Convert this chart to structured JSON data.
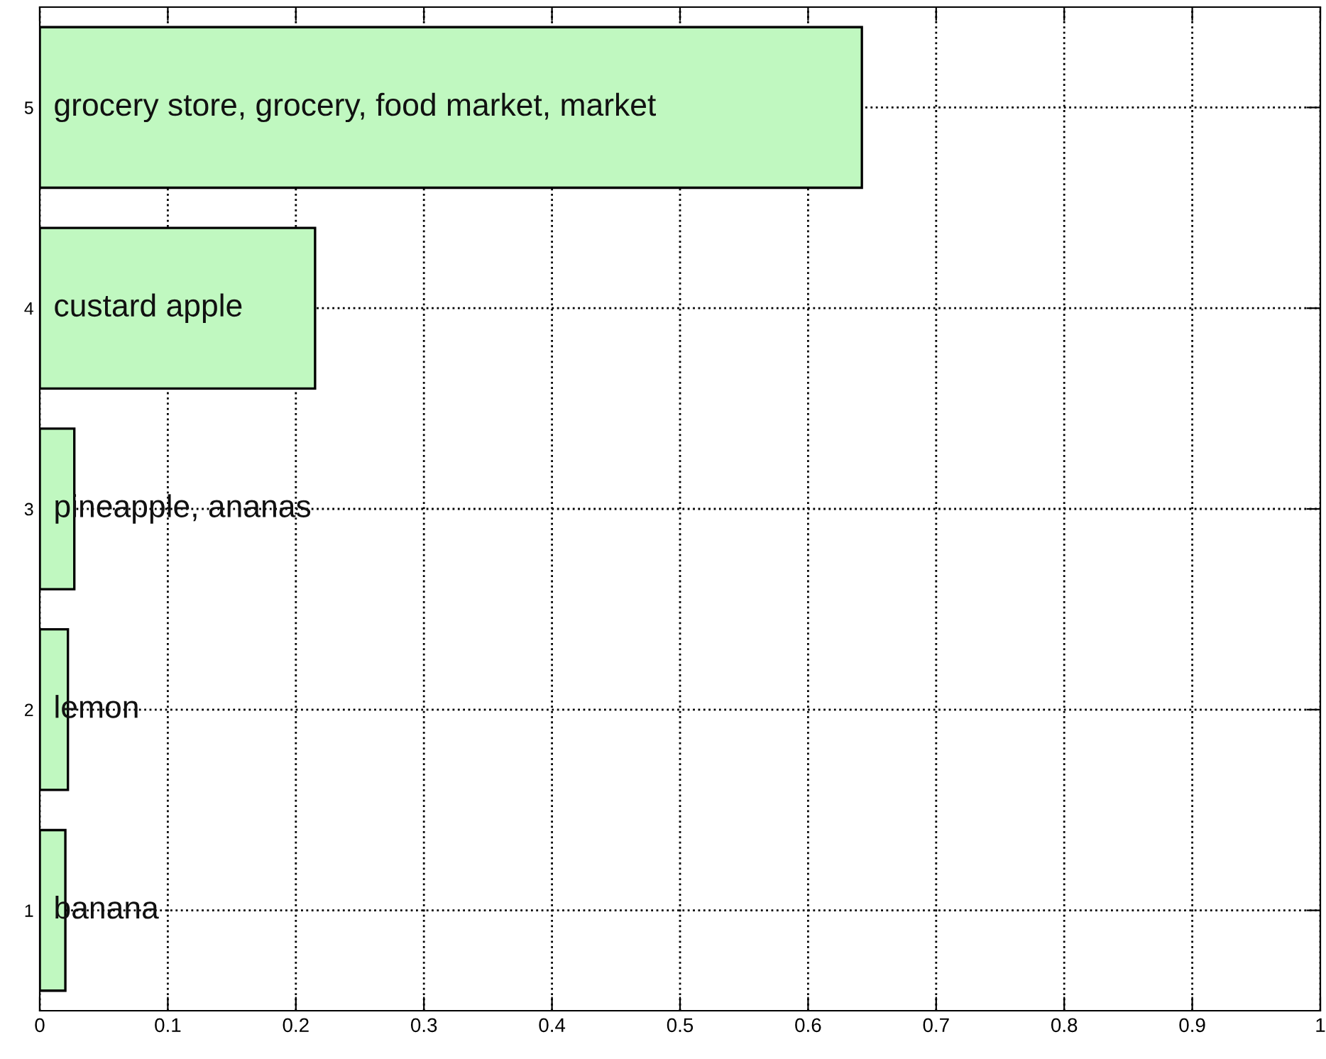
{
  "chart_data": {
    "type": "bar",
    "orientation": "horizontal",
    "categories": [
      "5",
      "4",
      "3",
      "2",
      "1"
    ],
    "values": [
      0.642,
      0.215,
      0.027,
      0.022,
      0.02
    ],
    "color": "#c0f8c0",
    "xlim": [
      0,
      1
    ],
    "xticks": [
      0,
      0.1,
      0.2,
      0.3,
      0.4,
      0.5,
      0.6,
      0.7,
      0.8,
      0.9,
      1
    ],
    "grid": true,
    "line_style": "dotted",
    "annotations": [
      "grocery store, grocery, food market, market",
      "custard apple",
      "pineapple, ananas",
      "lemon",
      "banana"
    ]
  }
}
